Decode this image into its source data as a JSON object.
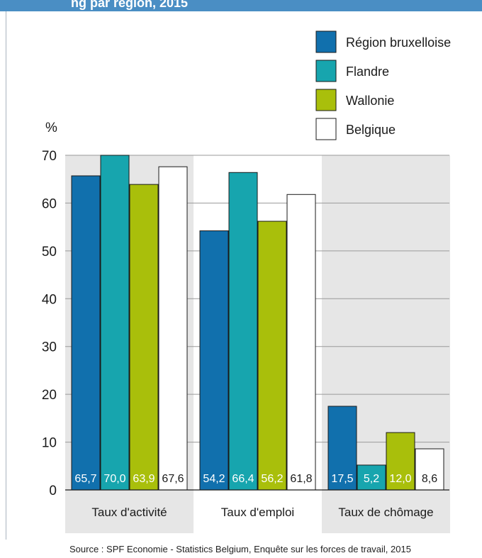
{
  "header": {
    "title_fragment": "ng par région, 2015"
  },
  "colors": {
    "region_bruxelloise": "#1170ad",
    "flandre": "#17a5ae",
    "wallonie": "#a9bf0b",
    "belgique": "#ffffff",
    "panel_shade": "#e6e6e6",
    "bar_stroke": "#1a1a1a"
  },
  "chart_data": {
    "type": "bar",
    "ylabel": "%",
    "ylim": [
      0,
      70
    ],
    "yticks": [
      "0",
      "10",
      "20",
      "30",
      "40",
      "50",
      "60",
      "70"
    ],
    "grid": true,
    "legend_placement": "top-right",
    "categories": [
      "Taux d'activité",
      "Taux d'emploi",
      "Taux de chômage"
    ],
    "series": [
      {
        "name": "Région bruxelloise",
        "values": [
          65.7,
          54.2,
          17.5
        ],
        "labels": [
          "65,7",
          "54,2",
          "17,5"
        ]
      },
      {
        "name": "Flandre",
        "values": [
          70.0,
          66.4,
          5.2
        ],
        "labels": [
          "70,0",
          "66,4",
          "5,2"
        ]
      },
      {
        "name": "Wallonie",
        "values": [
          63.9,
          56.2,
          12.0
        ],
        "labels": [
          "63,9",
          "56,2",
          "12,0"
        ]
      },
      {
        "name": "Belgique",
        "values": [
          67.6,
          61.8,
          8.6
        ],
        "labels": [
          "67,6",
          "61,8",
          "8,6"
        ]
      }
    ]
  },
  "source": "Source : SPF Economie - Statistics Belgium, Enquête sur les forces de travail, 2015"
}
